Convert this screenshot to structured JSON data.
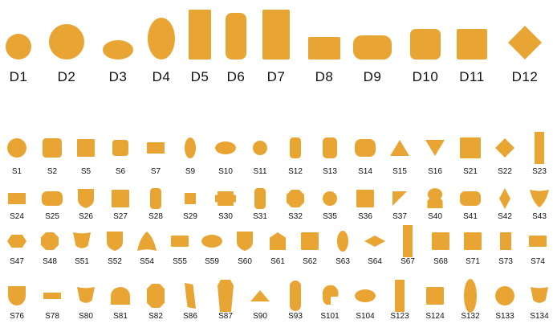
{
  "fill_color": "#E8A534",
  "text_color": "#111111",
  "d_shapes": [
    {
      "label": "D1",
      "shape": "circle"
    },
    {
      "label": "D2",
      "shape": "circle-large"
    },
    {
      "label": "D3",
      "shape": "ellipse-wide"
    },
    {
      "label": "D4",
      "shape": "ellipse-tall"
    },
    {
      "label": "D5",
      "shape": "rect-tall"
    },
    {
      "label": "D6",
      "shape": "rect-tall-rounded"
    },
    {
      "label": "D7",
      "shape": "rect-tall-wide"
    },
    {
      "label": "D8",
      "shape": "rect-wide"
    },
    {
      "label": "D9",
      "shape": "rect-wide-rounded"
    },
    {
      "label": "D10",
      "shape": "square-rounded"
    },
    {
      "label": "D11",
      "shape": "square"
    },
    {
      "label": "D12",
      "shape": "diamond"
    }
  ],
  "s_rows": [
    [
      {
        "label": "S1",
        "shape": "circle"
      },
      {
        "label": "S2",
        "shape": "square-rounded"
      },
      {
        "label": "S5",
        "shape": "square"
      },
      {
        "label": "S6",
        "shape": "square-small-rounded"
      },
      {
        "label": "S7",
        "shape": "rect-wide"
      },
      {
        "label": "S9",
        "shape": "ellipse-tall"
      },
      {
        "label": "S10",
        "shape": "ellipse-wide"
      },
      {
        "label": "S11",
        "shape": "circle-small"
      },
      {
        "label": "S12",
        "shape": "rect-tall-rounded"
      },
      {
        "label": "S13",
        "shape": "rect-tall-rounded-wide"
      },
      {
        "label": "S14",
        "shape": "rounded-wide"
      },
      {
        "label": "S15",
        "shape": "triangle-up"
      },
      {
        "label": "S16",
        "shape": "triangle-down"
      },
      {
        "label": "S21",
        "shape": "square-large"
      },
      {
        "label": "S22",
        "shape": "diamond"
      },
      {
        "label": "S23",
        "shape": "bar-tall"
      }
    ],
    [
      {
        "label": "S24",
        "shape": "rect-wide"
      },
      {
        "label": "S25",
        "shape": "rect-wide-rounded"
      },
      {
        "label": "S26",
        "shape": "shield"
      },
      {
        "label": "S27",
        "shape": "square"
      },
      {
        "label": "S28",
        "shape": "rect-tall-rounded"
      },
      {
        "label": "S29",
        "shape": "square-small"
      },
      {
        "label": "S30",
        "shape": "notched-rect"
      },
      {
        "label": "S31",
        "shape": "rect-tall-rounded"
      },
      {
        "label": "S32",
        "shape": "octagon"
      },
      {
        "label": "S35",
        "shape": "circle-small"
      },
      {
        "label": "S36",
        "shape": "square"
      },
      {
        "label": "S37",
        "shape": "triangle-corner"
      },
      {
        "label": "S40",
        "shape": "keyhole"
      },
      {
        "label": "S41",
        "shape": "rect-wide-rounded"
      },
      {
        "label": "S42",
        "shape": "diamond-tall"
      },
      {
        "label": "S43",
        "shape": "reuleaux-down"
      }
    ],
    [
      {
        "label": "S47",
        "shape": "hexagon-wide"
      },
      {
        "label": "S48",
        "shape": "octagon"
      },
      {
        "label": "S51",
        "shape": "cup"
      },
      {
        "label": "S52",
        "shape": "shield"
      },
      {
        "label": "S54",
        "shape": "reuleaux-up"
      },
      {
        "label": "S55",
        "shape": "rect-wide"
      },
      {
        "label": "S59",
        "shape": "ellipse-wide"
      },
      {
        "label": "S60",
        "shape": "shield"
      },
      {
        "label": "S61",
        "shape": "pentagon-house"
      },
      {
        "label": "S62",
        "shape": "square"
      },
      {
        "label": "S63",
        "shape": "ellipse-tall"
      },
      {
        "label": "S64",
        "shape": "diamond-wide"
      },
      {
        "label": "S67",
        "shape": "bar-tall"
      },
      {
        "label": "S68",
        "shape": "square"
      },
      {
        "label": "S71",
        "shape": "square"
      },
      {
        "label": "S73",
        "shape": "rect-tall"
      },
      {
        "label": "S74",
        "shape": "rect-wide"
      }
    ],
    [
      {
        "label": "S76",
        "shape": "shield-round"
      },
      {
        "label": "S78",
        "shape": "bar-wide"
      },
      {
        "label": "S80",
        "shape": "cup"
      },
      {
        "label": "S81",
        "shape": "arch"
      },
      {
        "label": "S82",
        "shape": "octagon-tall"
      },
      {
        "label": "S86",
        "shape": "parallelogram-tall"
      },
      {
        "label": "S87",
        "shape": "hexagon-tall"
      },
      {
        "label": "S90",
        "shape": "triangle-flat"
      },
      {
        "label": "S93",
        "shape": "capsule-tall"
      },
      {
        "label": "S101",
        "shape": "helmet"
      },
      {
        "label": "S104",
        "shape": "ellipse-wide"
      },
      {
        "label": "S123",
        "shape": "bar-tall"
      },
      {
        "label": "S124",
        "shape": "square"
      },
      {
        "label": "S132",
        "shape": "ellipse-tall-large"
      },
      {
        "label": "S133",
        "shape": "circle"
      },
      {
        "label": "S134",
        "shape": "cup"
      }
    ]
  ]
}
